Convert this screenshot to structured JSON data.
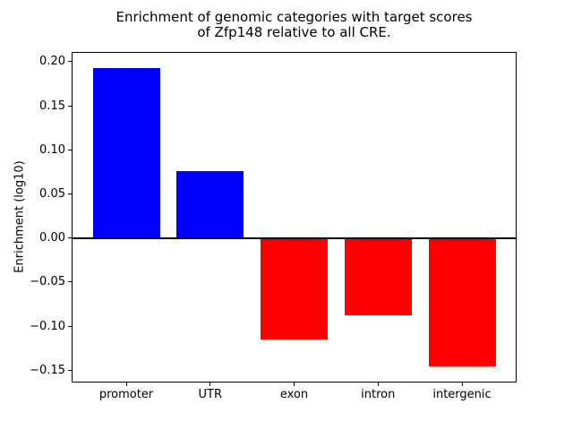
{
  "chart_data": {
    "type": "bar",
    "title": "Enrichment of genomic categories with target scores\nof Zfp148 relative to all CRE.",
    "title_lines": [
      "Enrichment of genomic categories with target scores",
      "of Zfp148 relative to all CRE."
    ],
    "xlabel": "",
    "ylabel": "Enrichment (log10)",
    "categories": [
      "promoter",
      "UTR",
      "exon",
      "intron",
      "intergenic"
    ],
    "values": [
      0.193,
      0.076,
      -0.115,
      -0.088,
      -0.146
    ],
    "bar_colors": [
      "#0000ff",
      "#0000ff",
      "#ff0000",
      "#ff0000",
      "#ff0000"
    ],
    "positive_color": "#0000ff",
    "negative_color": "#ff0000",
    "ylim": [
      -0.163,
      0.21
    ],
    "yticks": [
      0.2,
      0.15,
      0.1,
      0.05,
      0.0,
      -0.05,
      -0.1,
      -0.15
    ],
    "ytick_labels": [
      "0.20",
      "0.15",
      "0.10",
      "0.05",
      "0.00",
      "−0.05",
      "−0.10",
      "−0.15"
    ],
    "grid": false,
    "legend_position": "none",
    "zero_line": true,
    "axis_color": "#000000",
    "background_color": "#ffffff"
  }
}
